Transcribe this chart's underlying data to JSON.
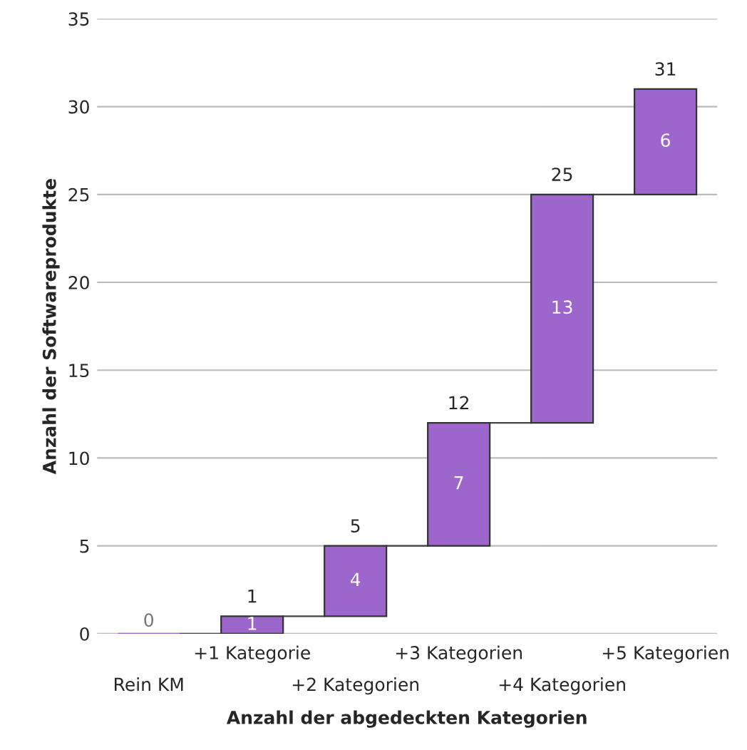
{
  "chart_data": {
    "type": "bar",
    "xlabel": "Anzahl der abgedeckten Kategorien",
    "ylabel": "Anzahl der Softwareprodukte",
    "categories": [
      "Rein KM",
      "+1 Kategorie",
      "+2 Kategorien",
      "+3 Kategorien",
      "+4 Kategorien",
      "+5 Kategorien"
    ],
    "values": [
      0,
      1,
      4,
      7,
      13,
      6
    ],
    "base": [
      0,
      0,
      1,
      5,
      12,
      25
    ],
    "color": "#9c66cc",
    "data_labels": true,
    "annotations": [
      {
        "text": "1",
        "x": "+1 Kategorie",
        "y": 1
      },
      {
        "text": "5",
        "x": "+2 Kategorien",
        "y": 5
      },
      {
        "text": "12",
        "x": "+3 Kategorien",
        "y": 12
      },
      {
        "text": "25",
        "x": "+4 Kategorien",
        "y": 25
      },
      {
        "text": "31",
        "x": "+5 Kategorien",
        "y": 31
      }
    ],
    "ylim": [
      0,
      35
    ],
    "yticks": [
      0,
      5,
      10,
      15,
      20,
      25,
      30,
      35
    ],
    "grid": "y"
  }
}
